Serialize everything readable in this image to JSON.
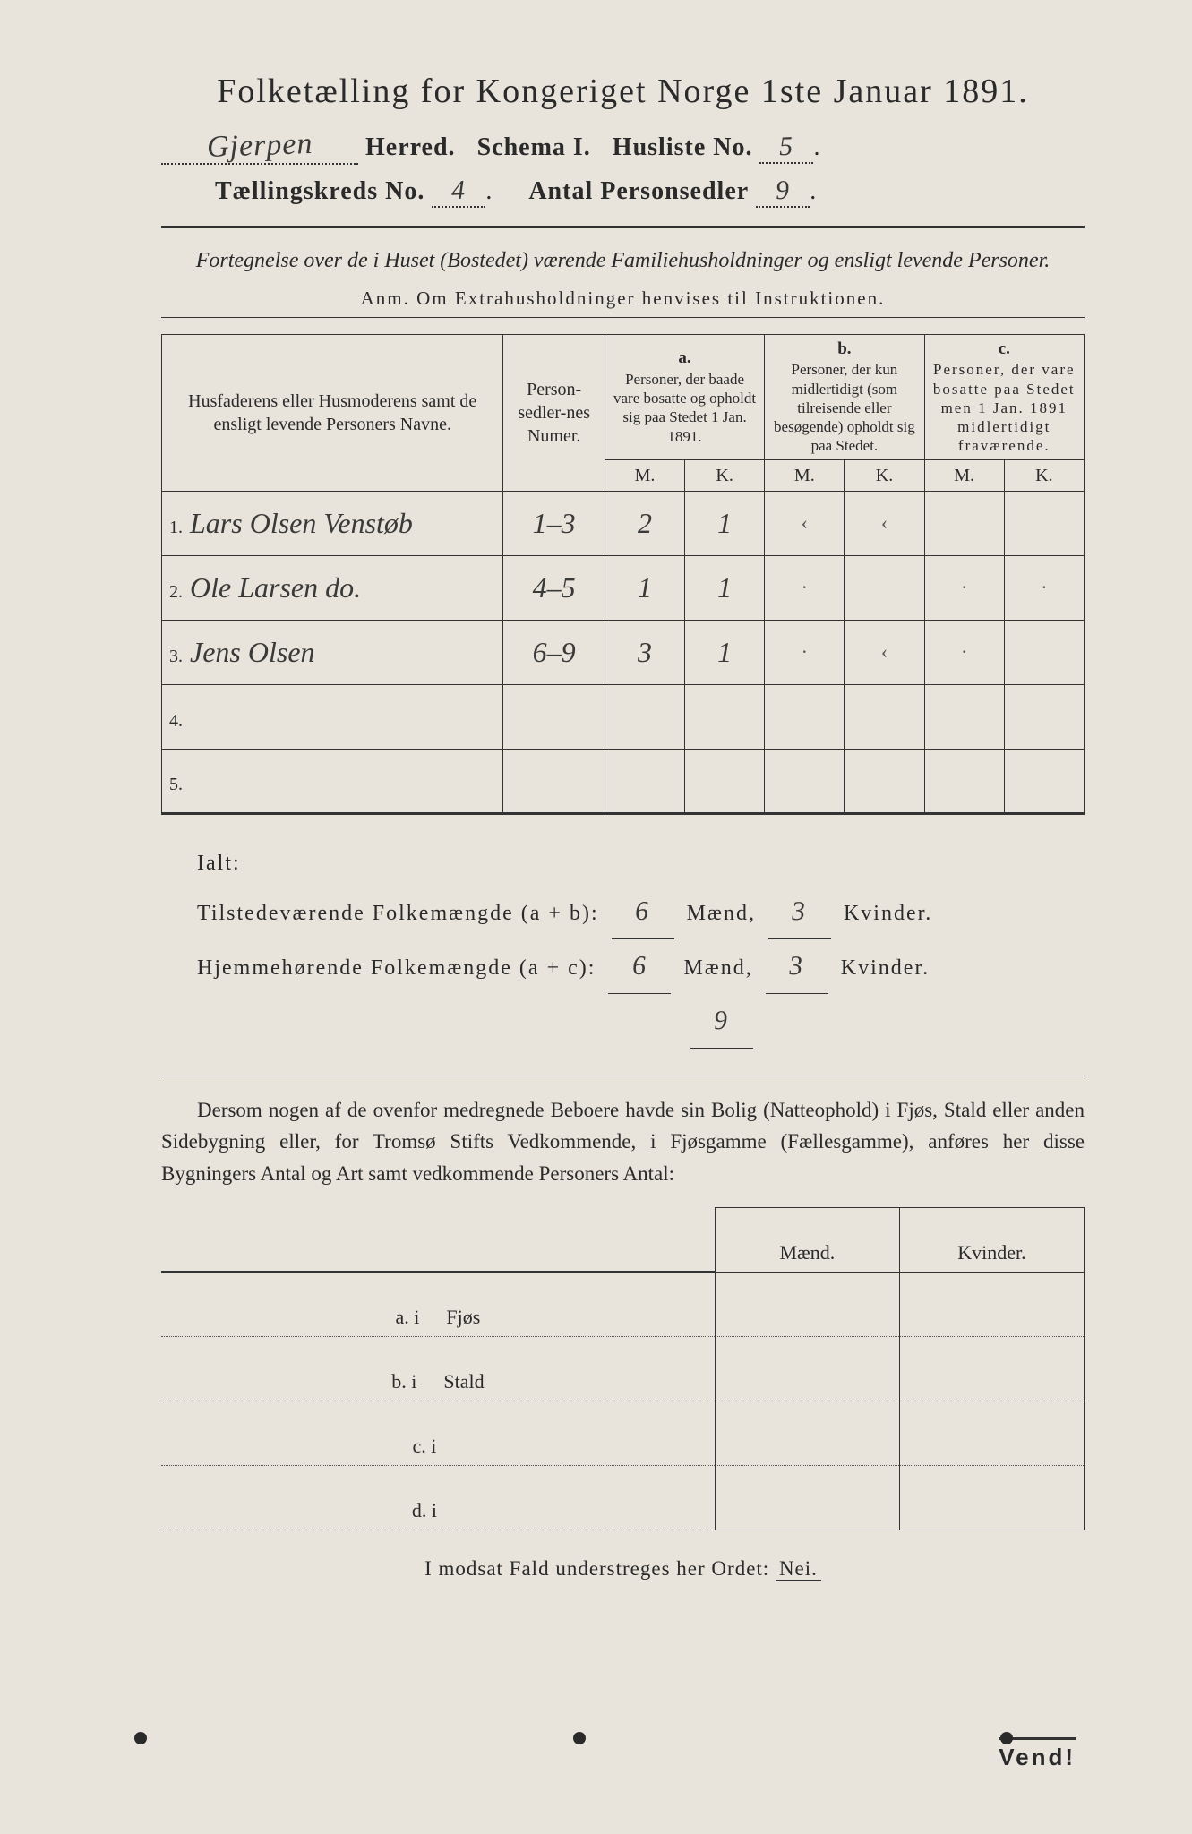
{
  "title": "Folketælling for Kongeriget Norge 1ste Januar 1891.",
  "header": {
    "herred_value": "Gjerpen",
    "herred_label": "Herred.",
    "schema_label": "Schema I.",
    "husliste_label": "Husliste No.",
    "husliste_value": "5",
    "kreds_label": "Tællingskreds No.",
    "kreds_value": "4",
    "antal_label": "Antal Personsedler",
    "antal_value": "9"
  },
  "subtitle": "Fortegnelse over de i Huset (Bostedet) værende Familiehusholdninger og ensligt levende Personer.",
  "anm": "Anm.  Om Extrahusholdninger henvises til Instruktionen.",
  "table": {
    "col_name": "Husfaderens eller Husmoderens samt de ensligt levende Personers Navne.",
    "col_num": "Person-sedler-nes Numer.",
    "col_a_letter": "a.",
    "col_a": "Personer, der baade vare bosatte og opholdt sig paa Stedet 1 Jan. 1891.",
    "col_b_letter": "b.",
    "col_b": "Personer, der kun midlertidigt (som tilreisende eller besøgende) opholdt sig paa Stedet.",
    "col_c_letter": "c.",
    "col_c": "Personer, der vare bosatte paa Stedet men 1 Jan. 1891 midlertidigt fraværende.",
    "m": "M.",
    "k": "K.",
    "rows": [
      {
        "n": "1.",
        "name": "Lars Olsen Venstøb",
        "num": "1–3",
        "am": "2",
        "ak": "1",
        "bm": "‹",
        "bk": "‹",
        "cm": "",
        "ck": ""
      },
      {
        "n": "2.",
        "name": "Ole Larsen     do.",
        "num": "4–5",
        "am": "1",
        "ak": "1",
        "bm": "·",
        "bk": "",
        "cm": "·",
        "ck": "·"
      },
      {
        "n": "3.",
        "name": "Jens Olsen",
        "num": "6–9",
        "am": "3",
        "ak": "1",
        "bm": "·",
        "bk": "‹",
        "cm": "·",
        "ck": ""
      },
      {
        "n": "4.",
        "name": "",
        "num": "",
        "am": "",
        "ak": "",
        "bm": "",
        "bk": "",
        "cm": "",
        "ck": ""
      },
      {
        "n": "5.",
        "name": "",
        "num": "",
        "am": "",
        "ak": "",
        "bm": "",
        "bk": "",
        "cm": "",
        "ck": ""
      }
    ]
  },
  "totals": {
    "ialt": "Ialt:",
    "line1_label": "Tilstedeværende Folkemængde (a + b):",
    "line2_label": "Hjemmehørende Folkemængde (a + c):",
    "maend": "Mænd,",
    "kvinder": "Kvinder.",
    "t_m": "6",
    "t_k": "3",
    "h_m": "6",
    "h_k": "3",
    "sum": "9"
  },
  "paragraph": "Dersom nogen af de ovenfor medregnede Beboere havde sin Bolig (Natteophold) i Fjøs, Stald eller anden Sidebygning eller, for Tromsø Stifts Vedkommende, i Fjøsgamme (Fællesgamme), anføres her disse Bygningers Antal og Art samt vedkommende Personers Antal:",
  "buildings": {
    "maend": "Mænd.",
    "kvinder": "Kvinder.",
    "rows": [
      {
        "l": "a.  i",
        "t": "Fjøs"
      },
      {
        "l": "b.  i",
        "t": "Stald"
      },
      {
        "l": "c.  i",
        "t": ""
      },
      {
        "l": "d.  i",
        "t": ""
      }
    ]
  },
  "nei_line_pre": "I modsat Fald understreges her Ordet:",
  "nei": "Nei.",
  "vend": "Vend!"
}
